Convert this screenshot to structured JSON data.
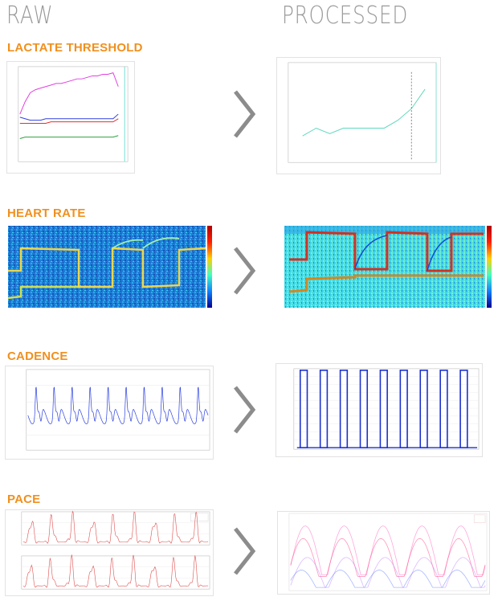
{
  "columns": {
    "raw": "RAW",
    "processed": "PROCESSED"
  },
  "sections": [
    {
      "id": "lactate",
      "title": "LACTATE THRESHOLD"
    },
    {
      "id": "heart",
      "title": "HEART RATE"
    },
    {
      "id": "cadence",
      "title": "CADENCE"
    },
    {
      "id": "pace",
      "title": "PACE"
    }
  ],
  "colors": {
    "accent": "#f0901e",
    "header": "#9a9a9a",
    "chevron": "#8c8c8c"
  },
  "icons": {
    "arrow": "chevron-right-icon"
  },
  "chart_data": [
    {
      "id": "lactate-raw",
      "type": "line",
      "ylim": [
        0,
        60
      ],
      "series": [
        {
          "name": "magenta",
          "color": "#e040e0",
          "values": [
            30,
            38,
            44,
            46,
            47,
            48,
            49,
            50,
            50,
            51,
            52,
            53,
            53,
            54,
            55,
            55,
            56,
            56,
            57,
            48
          ]
        },
        {
          "name": "blue",
          "color": "#3040e0",
          "values": [
            28,
            27,
            26,
            26,
            26,
            27,
            27,
            27,
            27,
            27,
            27,
            27,
            27,
            27,
            27,
            27,
            27,
            27,
            27,
            30
          ]
        },
        {
          "name": "red",
          "color": "#e03030",
          "values": [
            24,
            24,
            24,
            24,
            24,
            24,
            25,
            25,
            25,
            25,
            25,
            25,
            25,
            25,
            25,
            25,
            25,
            25,
            25,
            27
          ]
        },
        {
          "name": "green",
          "color": "#30a040",
          "values": [
            14,
            15,
            15,
            15,
            15,
            15,
            15,
            15,
            15,
            15,
            15,
            15,
            15,
            15,
            15,
            15,
            15,
            15,
            15,
            16
          ]
        }
      ]
    },
    {
      "id": "lactate-processed",
      "type": "line",
      "ylim": [
        0,
        12
      ],
      "x": [
        1,
        2,
        3,
        4,
        5,
        6,
        7,
        8,
        9,
        10
      ],
      "values": [
        3,
        4,
        3.3,
        4,
        4,
        4,
        4,
        5,
        6.5,
        9
      ],
      "threshold_x": 9
    },
    {
      "id": "cadence-raw",
      "type": "line",
      "ylim": [
        -1,
        1
      ],
      "cycles": 10
    },
    {
      "id": "cadence-processed",
      "type": "line",
      "ylim": [
        0,
        1
      ],
      "pulses": 9
    }
  ]
}
